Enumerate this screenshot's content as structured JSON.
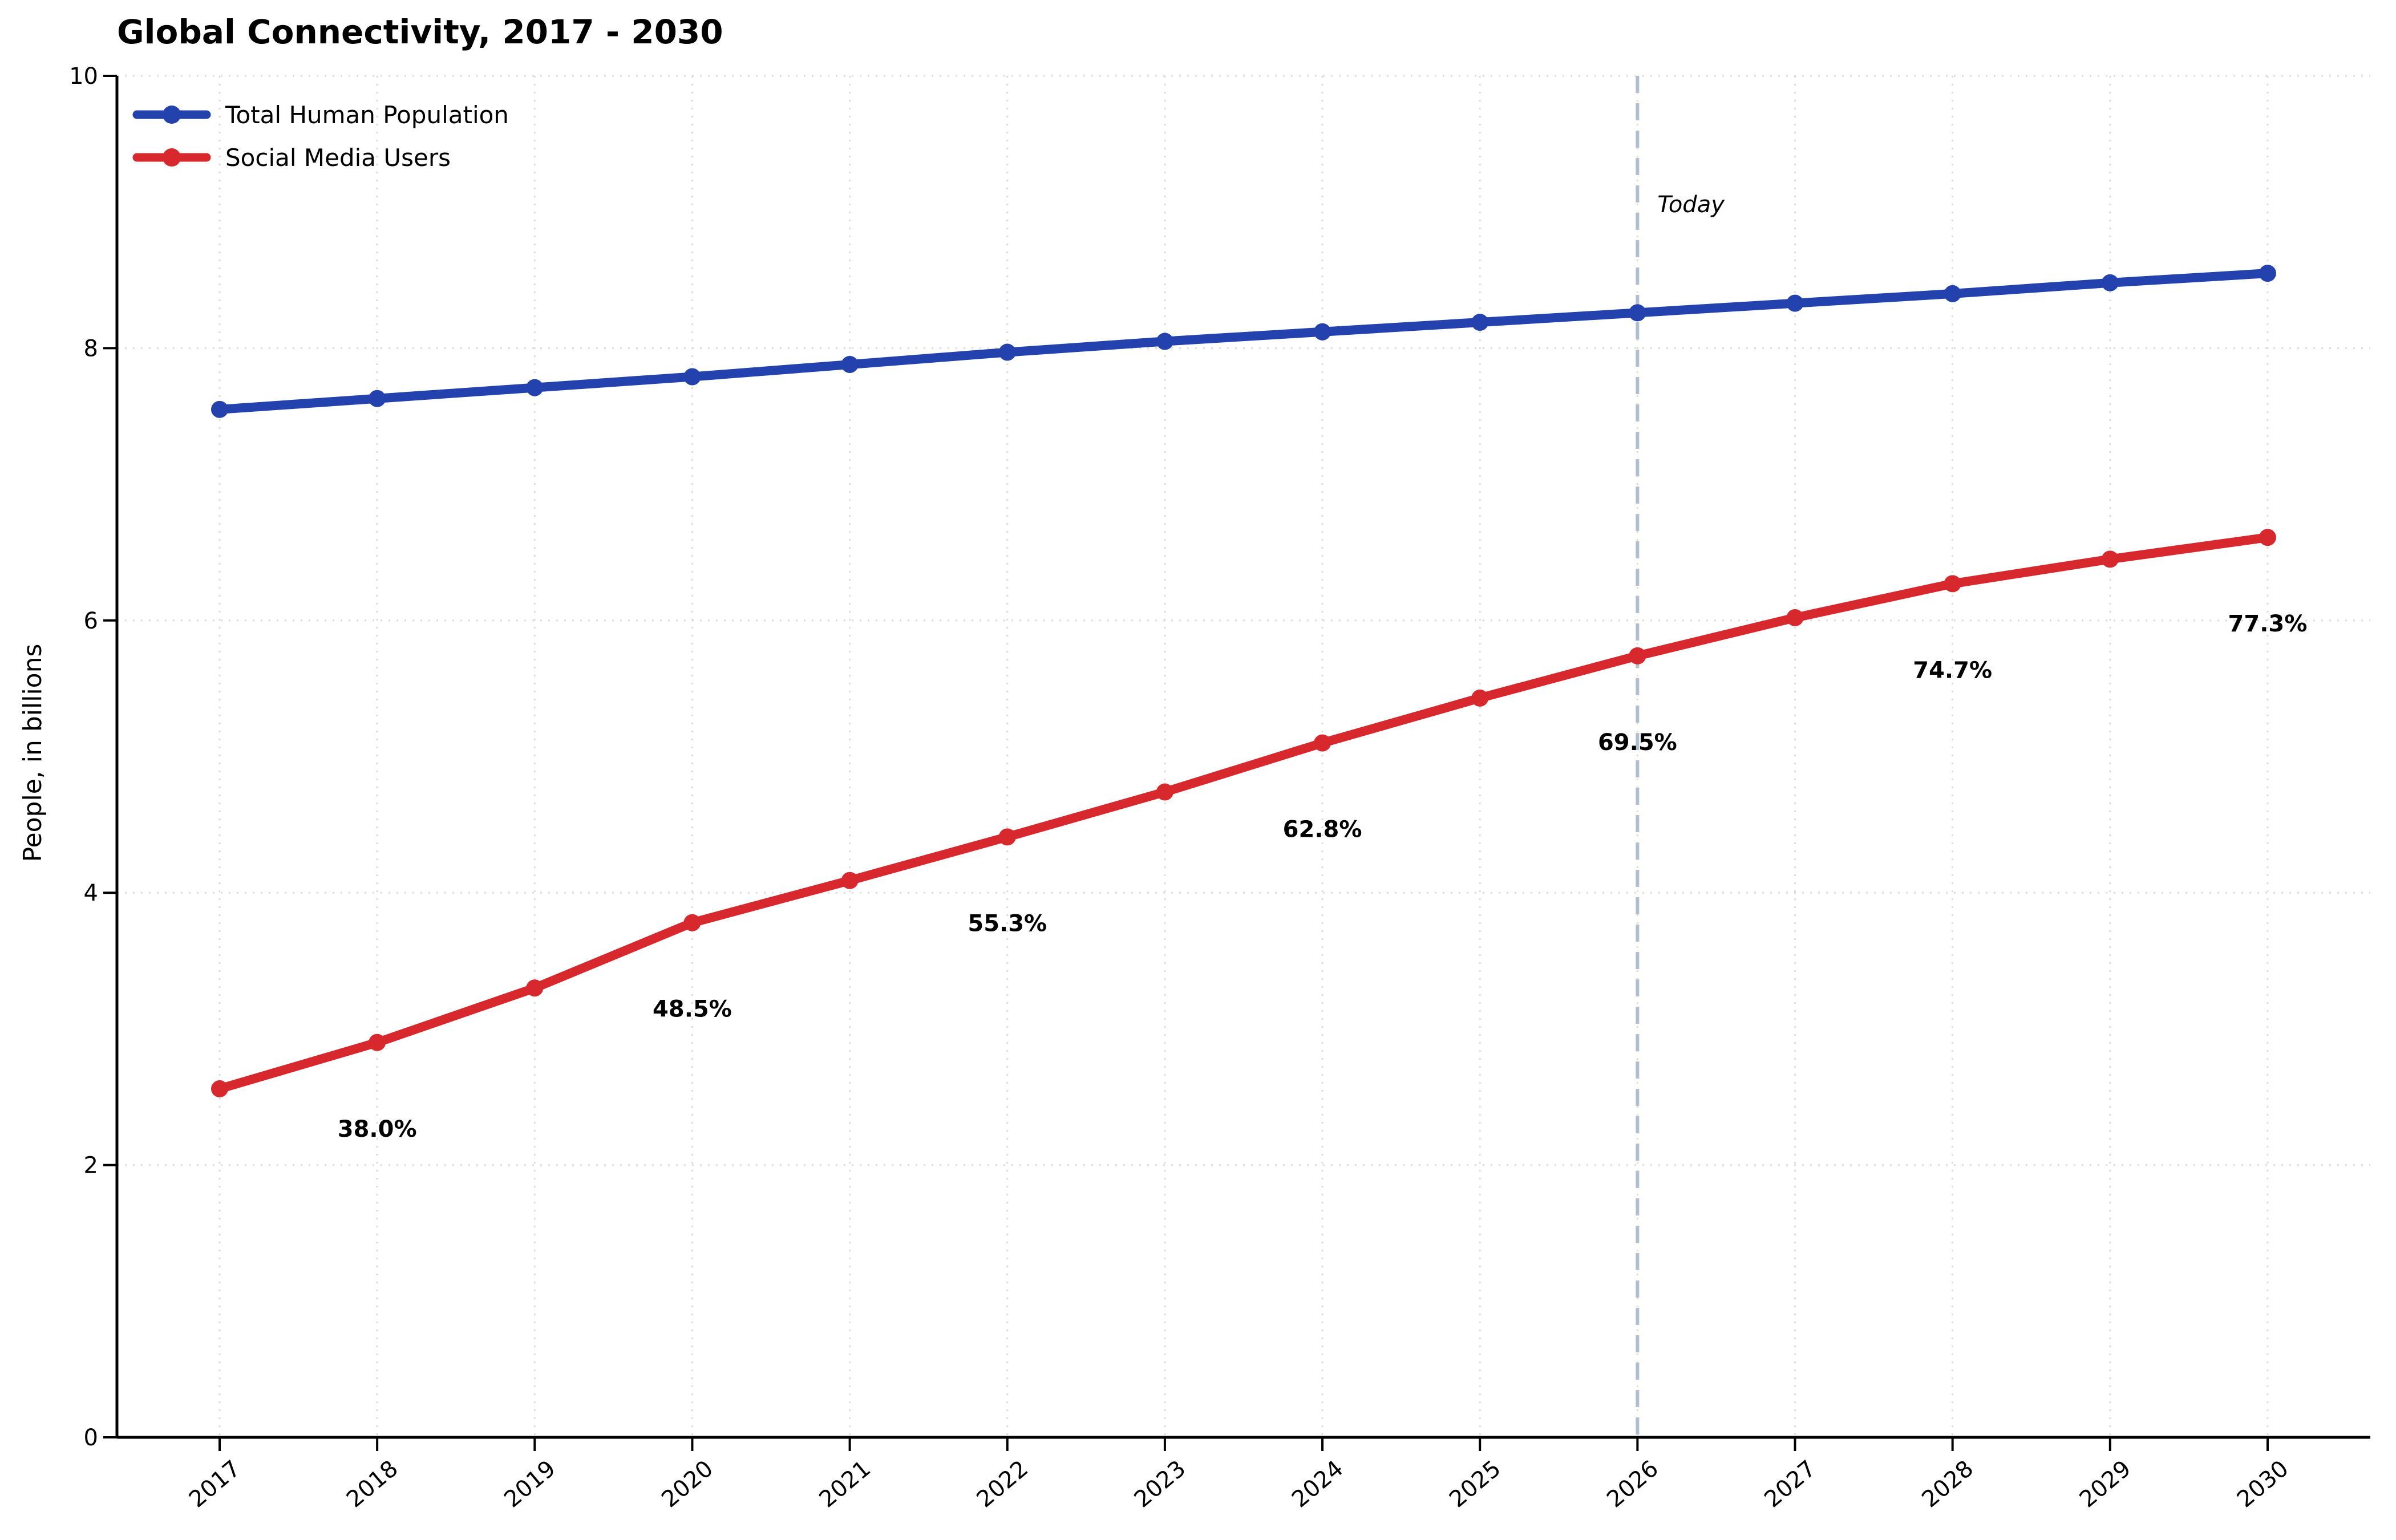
{
  "title": "Global Connectivity, 2017 - 2030",
  "today": {
    "label": "Today",
    "year": 2026
  },
  "colors": {
    "population_line": "#2342ad",
    "social_line": "#d7282e",
    "annotation_text": "#d7282e",
    "today_line": "#b3bfce",
    "today_text": "#67788f",
    "grid": "#dcdcdc",
    "axis": "#000000",
    "background": "#ffffff"
  },
  "chart_data": {
    "type": "line",
    "x": [
      2017,
      2018,
      2019,
      2020,
      2021,
      2022,
      2023,
      2024,
      2025,
      2026,
      2027,
      2028,
      2029,
      2030
    ],
    "series": [
      {
        "name": "Total Human Population",
        "color": "#2342ad",
        "values": [
          7.55,
          7.63,
          7.71,
          7.79,
          7.88,
          7.97,
          8.05,
          8.12,
          8.19,
          8.26,
          8.33,
          8.4,
          8.48,
          8.55
        ]
      },
      {
        "name": "Social Media Users",
        "color": "#d7282e",
        "values": [
          2.56,
          2.9,
          3.3,
          3.78,
          4.09,
          4.41,
          4.74,
          5.1,
          5.43,
          5.74,
          6.02,
          6.27,
          6.45,
          6.61
        ]
      }
    ],
    "annotations": [
      {
        "year": 2018,
        "label": "38.0%"
      },
      {
        "year": 2020,
        "label": "48.5%"
      },
      {
        "year": 2022,
        "label": "55.3%"
      },
      {
        "year": 2024,
        "label": "62.8%"
      },
      {
        "year": 2026,
        "label": "69.5%"
      },
      {
        "year": 2028,
        "label": "74.7%"
      },
      {
        "year": 2030,
        "label": "77.3%"
      }
    ],
    "title": "Global Connectivity, 2017 - 2030",
    "xlabel": "",
    "ylabel": "People, in billions",
    "ylim": [
      0,
      10
    ],
    "yticks": [
      0,
      2,
      4,
      6,
      8,
      10
    ],
    "grid": true,
    "legend_position": "upper left"
  }
}
